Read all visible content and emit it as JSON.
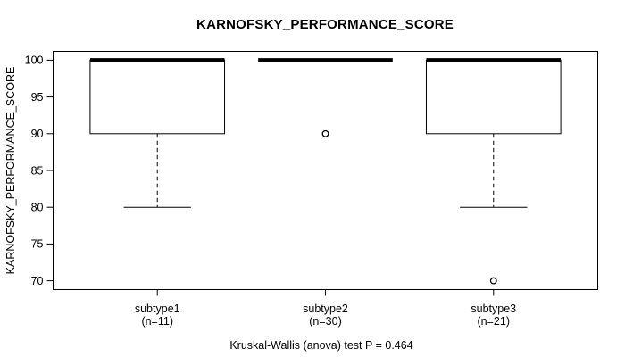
{
  "chart_data": {
    "type": "box",
    "title": "KARNOFSKY_PERFORMANCE_SCORE",
    "ylabel": "KARNOFSKY_PERFORMANCE_SCORE",
    "caption": "Kruskal-Wallis (anova) test P = 0.464",
    "ylim": [
      68.8,
      101.2
    ],
    "yticks": [
      70,
      75,
      80,
      85,
      90,
      95,
      100
    ],
    "xlim": [
      0.38,
      3.62
    ],
    "grid": false,
    "legend": null,
    "groups": [
      {
        "label": "subtype1",
        "n_label": "(n=11)",
        "position": 1,
        "q1": 90,
        "median": 100,
        "q3": 100,
        "whisker_low": 80,
        "whisker_high": 100,
        "outliers": []
      },
      {
        "label": "subtype2",
        "n_label": "(n=30)",
        "position": 2,
        "q1": 100,
        "median": 100,
        "q3": 100,
        "whisker_low": 100,
        "whisker_high": 100,
        "outliers": [
          90
        ]
      },
      {
        "label": "subtype3",
        "n_label": "(n=21)",
        "position": 3,
        "q1": 90,
        "median": 100,
        "q3": 100,
        "whisker_low": 80,
        "whisker_high": 100,
        "outliers": [
          70
        ]
      }
    ],
    "box_width": 0.8,
    "cap_width": 0.4,
    "colors": {
      "stroke": "#000000",
      "median": "#000000",
      "box_fill": "none",
      "background": "#ffffff",
      "text": "#000000"
    }
  }
}
